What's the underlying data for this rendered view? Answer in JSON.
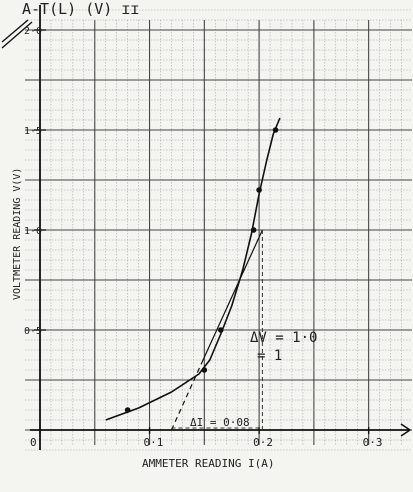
{
  "header_scrawl": "A-T(L) (V) ɪɪ",
  "chart_data": {
    "type": "line",
    "title": "",
    "xlabel": "AMMETER READING I(A)",
    "ylabel": "VOLTMETER READING V(V)",
    "xlim": [
      0,
      0.335
    ],
    "ylim": [
      0,
      2.0
    ],
    "x_ticks": [
      {
        "value": 0,
        "label": "0"
      },
      {
        "value": 0.1,
        "label": "0·1"
      },
      {
        "value": 0.2,
        "label": "0·2"
      },
      {
        "value": 0.3,
        "label": "0·3"
      }
    ],
    "y_ticks": [
      {
        "value": 0.5,
        "label": "0·5"
      },
      {
        "value": 1.0,
        "label": "1·0"
      },
      {
        "value": 1.5,
        "label": "1·5"
      },
      {
        "value": 2.0,
        "label": "2·0"
      }
    ],
    "grid": true,
    "series": [
      {
        "points": [
          {
            "x": 0.08,
            "y": 0.1
          },
          {
            "x": 0.15,
            "y": 0.3
          },
          {
            "x": 0.165,
            "y": 0.5
          },
          {
            "x": 0.195,
            "y": 1.0
          },
          {
            "x": 0.2,
            "y": 1.2
          },
          {
            "x": 0.215,
            "y": 1.5
          }
        ],
        "curve": [
          [
            0.06,
            0.05
          ],
          [
            0.09,
            0.11
          ],
          [
            0.12,
            0.19
          ],
          [
            0.145,
            0.28
          ],
          [
            0.155,
            0.35
          ],
          [
            0.165,
            0.48
          ],
          [
            0.175,
            0.62
          ],
          [
            0.185,
            0.8
          ],
          [
            0.193,
            0.98
          ],
          [
            0.2,
            1.18
          ],
          [
            0.207,
            1.35
          ],
          [
            0.213,
            1.48
          ],
          [
            0.219,
            1.56
          ]
        ]
      }
    ],
    "tangent": {
      "x1": 0.12,
      "y1": 0.0,
      "x2": 0.203,
      "y2": 1.0
    },
    "annotations": {
      "dV": "ΔV = 1·0",
      "dV_2": "= 1",
      "dI": "ΔI = 0·08"
    }
  }
}
